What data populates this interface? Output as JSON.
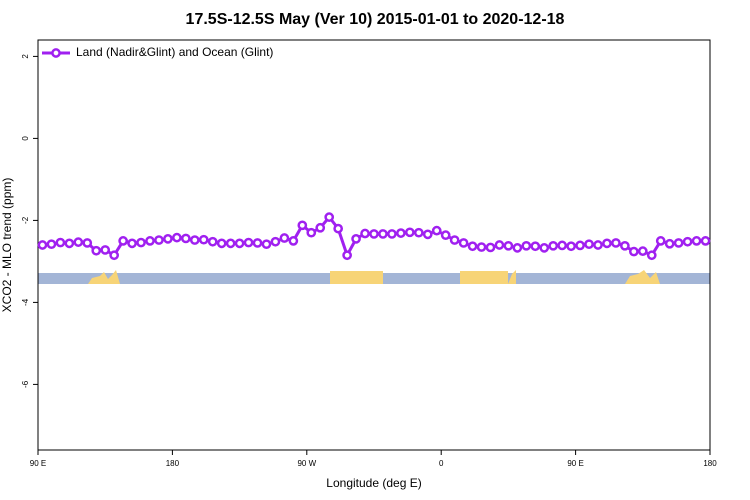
{
  "chart_data": {
    "type": "line",
    "title": "17.5S-12.5S May (Ver 10)   2015-01-01 to 2020-12-18",
    "x_label": "Longitude (deg E)",
    "y_label": "XCO2 - MLO trend (ppm)",
    "legend_position": "top-left",
    "grid": false,
    "xlim": [
      90,
      540
    ],
    "xticks": [
      {
        "value": 90,
        "label": "90 E"
      },
      {
        "value": 180,
        "label": "180"
      },
      {
        "value": 270,
        "label": "90 W"
      },
      {
        "value": 360,
        "label": "0"
      },
      {
        "value": 450,
        "label": "90 E"
      },
      {
        "value": 540,
        "label": "180"
      }
    ],
    "ylim": [
      -7.6,
      2.4
    ],
    "yticks": [
      2,
      0,
      -2,
      -4,
      -6
    ],
    "x": [
      93,
      99,
      105,
      111,
      117,
      123,
      129,
      135,
      141,
      147,
      153,
      159,
      165,
      171,
      177,
      183,
      189,
      195,
      201,
      207,
      213,
      219,
      225,
      231,
      237,
      243,
      249,
      255,
      261,
      267,
      273,
      279,
      285,
      291,
      297,
      303,
      309,
      315,
      321,
      327,
      333,
      339,
      345,
      351,
      357,
      363,
      369,
      375,
      381,
      387,
      393,
      399,
      405,
      411,
      417,
      423,
      429,
      435,
      441,
      447,
      453,
      459,
      465,
      471,
      477,
      483,
      489,
      495,
      501,
      507,
      513,
      519,
      525,
      531,
      537
    ],
    "series": [
      {
        "name": "Land (Nadir&Glint) and Ocean (Glint)",
        "color": "#a020f0",
        "values": [
          -2.6,
          -2.58,
          -2.54,
          -2.56,
          -2.53,
          -2.55,
          -2.74,
          -2.72,
          -2.85,
          -2.5,
          -2.56,
          -2.54,
          -2.5,
          -2.48,
          -2.45,
          -2.42,
          -2.44,
          -2.48,
          -2.47,
          -2.52,
          -2.56,
          -2.56,
          -2.56,
          -2.54,
          -2.55,
          -2.58,
          -2.52,
          -2.43,
          -2.5,
          -2.12,
          -2.3,
          -2.18,
          -1.92,
          -2.2,
          -2.85,
          -2.45,
          -2.32,
          -2.33,
          -2.33,
          -2.33,
          -2.31,
          -2.29,
          -2.3,
          -2.34,
          -2.25,
          -2.36,
          -2.48,
          -2.55,
          -2.63,
          -2.65,
          -2.66,
          -2.6,
          -2.62,
          -2.67,
          -2.62,
          -2.63,
          -2.67,
          -2.62,
          -2.61,
          -2.63,
          -2.61,
          -2.58,
          -2.6,
          -2.56,
          -2.55,
          -2.62,
          -2.76,
          -2.75,
          -2.85,
          -2.5,
          -2.57,
          -2.55,
          -2.52,
          -2.5,
          -2.5
        ]
      }
    ]
  }
}
